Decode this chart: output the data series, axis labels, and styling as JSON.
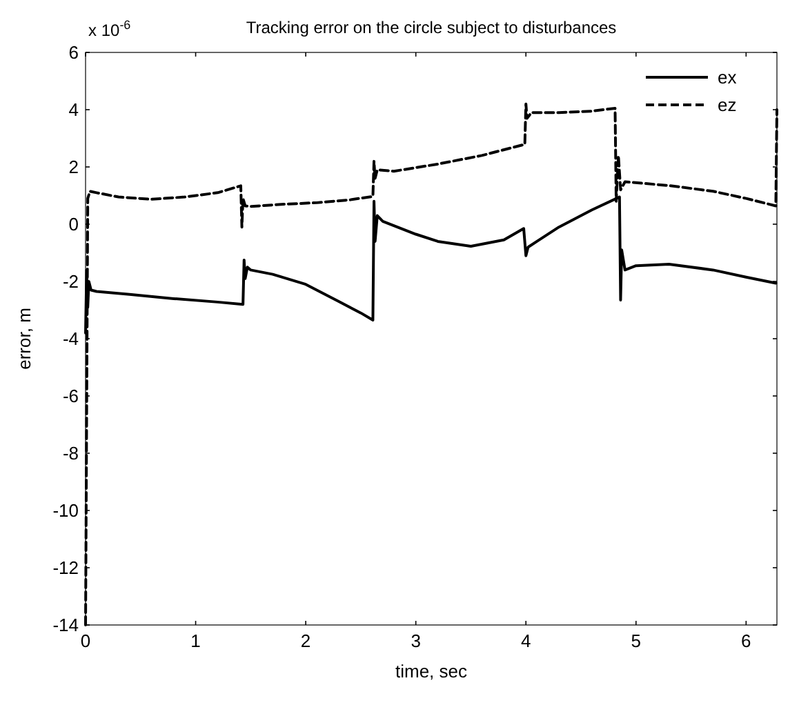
{
  "chart_data": {
    "type": "line",
    "title": "Tracking error on the circle subject to disturbances",
    "xlabel": "time, sec",
    "ylabel": "error, m",
    "annotations": [
      "x 10$^{-6}$"
    ],
    "xlim": [
      0,
      6.28
    ],
    "ylim": [
      -14,
      6
    ],
    "xticks": [
      0,
      1,
      2,
      3,
      4,
      5,
      6
    ],
    "yticks": [
      -14,
      -12,
      -10,
      -8,
      -6,
      -4,
      -2,
      0,
      2,
      4,
      6
    ],
    "grid": false,
    "legend": "top right",
    "marker": "none",
    "series": [
      {
        "name": "ex",
        "color": "#000000",
        "line_style": "solid",
        "x": [
          0,
          0.01,
          0.02,
          0.03,
          0.05,
          0.1,
          0.4,
          0.8,
          1.2,
          1.43,
          1.44,
          1.45,
          1.47,
          1.5,
          1.7,
          2.0,
          2.3,
          2.5,
          2.61,
          2.62,
          2.63,
          2.65,
          2.7,
          3.0,
          3.2,
          3.5,
          3.8,
          3.98,
          4.0,
          4.02,
          4.1,
          4.3,
          4.6,
          4.85,
          4.86,
          4.87,
          4.9,
          5.0,
          5.3,
          5.7,
          6.0,
          6.27
        ],
        "values": [
          -3.8,
          -1.6,
          -2.9,
          -2.0,
          -2.3,
          -2.35,
          -2.45,
          -2.6,
          -2.72,
          -2.8,
          -1.25,
          -1.9,
          -1.5,
          -1.6,
          -1.75,
          -2.1,
          -2.7,
          -3.1,
          -3.35,
          0.8,
          -0.6,
          0.3,
          0.1,
          -0.35,
          -0.6,
          -0.77,
          -0.55,
          -0.15,
          -1.1,
          -0.8,
          -0.6,
          -0.1,
          0.5,
          0.95,
          -2.65,
          -0.9,
          -1.6,
          -1.45,
          -1.4,
          -1.6,
          -1.85,
          -2.06
        ]
      },
      {
        "name": "ez",
        "color": "#000000",
        "line_style": "dashed",
        "x": [
          0,
          0.02,
          0.04,
          0.1,
          0.3,
          0.6,
          0.9,
          1.2,
          1.41,
          1.42,
          1.43,
          1.45,
          1.5,
          1.8,
          2.1,
          2.4,
          2.61,
          2.62,
          2.63,
          2.65,
          2.8,
          3.2,
          3.6,
          3.99,
          4.0,
          4.01,
          4.05,
          4.3,
          4.6,
          4.81,
          4.82,
          4.84,
          4.86,
          4.9,
          5.3,
          5.7,
          6.0,
          6.27,
          6.28
        ],
        "values": [
          -14,
          0.9,
          1.15,
          1.1,
          0.95,
          0.87,
          0.95,
          1.1,
          1.34,
          -0.1,
          0.9,
          0.64,
          0.62,
          0.7,
          0.75,
          0.85,
          0.97,
          2.2,
          1.6,
          1.9,
          1.85,
          2.1,
          2.4,
          2.79,
          4.2,
          3.7,
          3.9,
          3.9,
          3.95,
          4.05,
          0.8,
          2.4,
          1.2,
          1.48,
          1.35,
          1.15,
          0.9,
          0.64,
          4.0
        ]
      }
    ]
  }
}
